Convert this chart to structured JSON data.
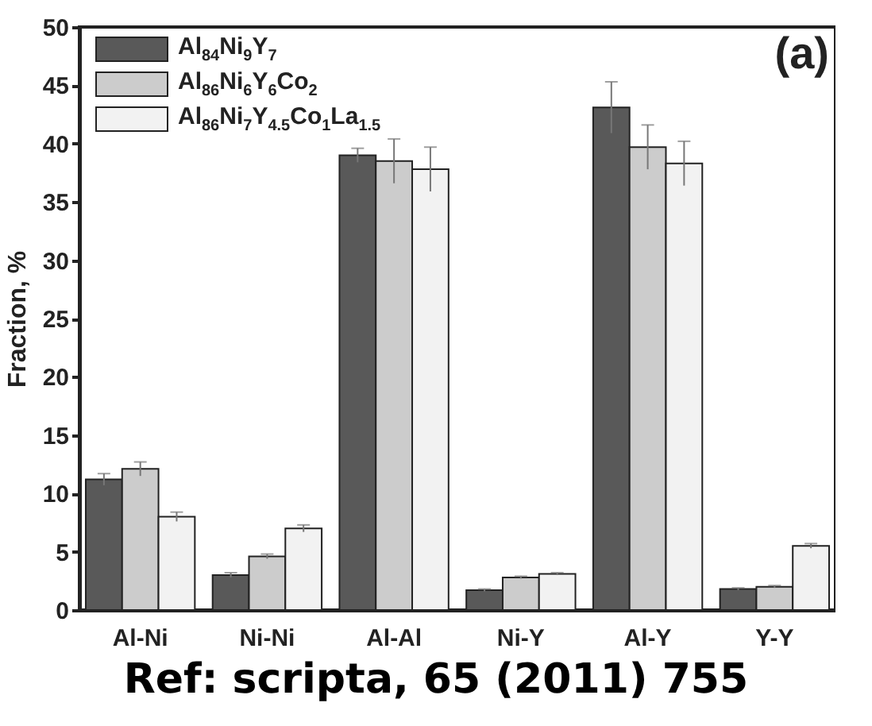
{
  "chart_data": {
    "type": "bar",
    "ylabel": "Fraction, %",
    "categories": [
      "Al-Ni",
      "Ni-Ni",
      "Al-Al",
      "Ni-Y",
      "Al-Y",
      "Y-Y"
    ],
    "series": [
      {
        "name": "Al$_{84}$Ni$_{9}$Y$_{7}$",
        "color": "#595959",
        "values": [
          11.2,
          3.0,
          39.0,
          1.7,
          43.1,
          1.8
        ],
        "errors": [
          0.5,
          0.2,
          0.6,
          0.1,
          2.2,
          0.1
        ]
      },
      {
        "name": "Al$_{86}$Ni$_{6}$Y$_{6}$Co$_{2}$",
        "color": "#cccccc",
        "values": [
          12.1,
          4.6,
          38.5,
          2.8,
          39.7,
          2.0
        ],
        "errors": [
          0.6,
          0.2,
          1.9,
          0.1,
          1.9,
          0.1
        ]
      },
      {
        "name": "Al$_{86}$Ni$_{7}$Y$_{4.5}$Co$_{1}$La$_{1.5}$",
        "color": "#f2f2f2",
        "values": [
          8.0,
          7.0,
          37.8,
          3.1,
          38.3,
          5.5
        ],
        "errors": [
          0.4,
          0.3,
          1.9,
          0.1,
          1.9,
          0.2
        ]
      }
    ],
    "ylim": [
      0,
      50
    ],
    "yticks": [
      0,
      5,
      10,
      15,
      20,
      25,
      30,
      35,
      40,
      45,
      50
    ],
    "legend": "top left",
    "grid": false,
    "annotations": [
      "(a)",
      "Ref: scripta, 65 (2011) 755"
    ]
  }
}
